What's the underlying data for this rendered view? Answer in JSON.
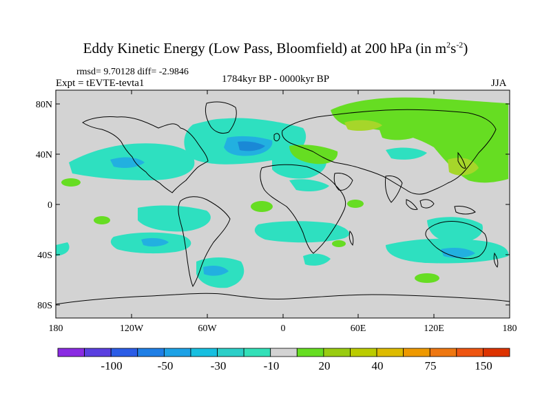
{
  "title": {
    "text": "Eddy Kinetic Energy (Low Pass, Bloomfield) at 200 hPa (in m",
    "sup1": "2",
    "mid": "s",
    "sup2": "-2",
    "end": ")"
  },
  "stats": "rmsd= 9.70128 diff= -2.9846",
  "expt": "Expt = tEVTE-tevta1",
  "period": "1784kyr BP - 0000kyr BP",
  "season": "JJA",
  "lat_ticks": [
    "80N",
    "40N",
    "0",
    "40S",
    "80S"
  ],
  "lon_ticks": [
    "180",
    "120W",
    "60W",
    "0",
    "60E",
    "120E",
    "180"
  ],
  "colorbar": {
    "colors": [
      "#8a2be2",
      "#5a3fe0",
      "#2b5ce6",
      "#1f7fe6",
      "#1da2e6",
      "#17bfe0",
      "#2ccfc8",
      "#33e0b8",
      "#d3d3d3",
      "#66dd22",
      "#99cc11",
      "#bbcc00",
      "#ddbb00",
      "#ee9900",
      "#ee7711",
      "#ee5511",
      "#dd3300"
    ],
    "labels": [
      "-100",
      "-50",
      "-30",
      "-10",
      "20",
      "40",
      "75",
      "150"
    ]
  },
  "colors": {
    "background": "#d3d3d3",
    "teal": "#2ee0c0",
    "blue": "#22b0e0",
    "deep_blue": "#1a88d6",
    "green": "#66dd22",
    "yellow_green": "#a6d62a",
    "land_line": "#000000"
  }
}
